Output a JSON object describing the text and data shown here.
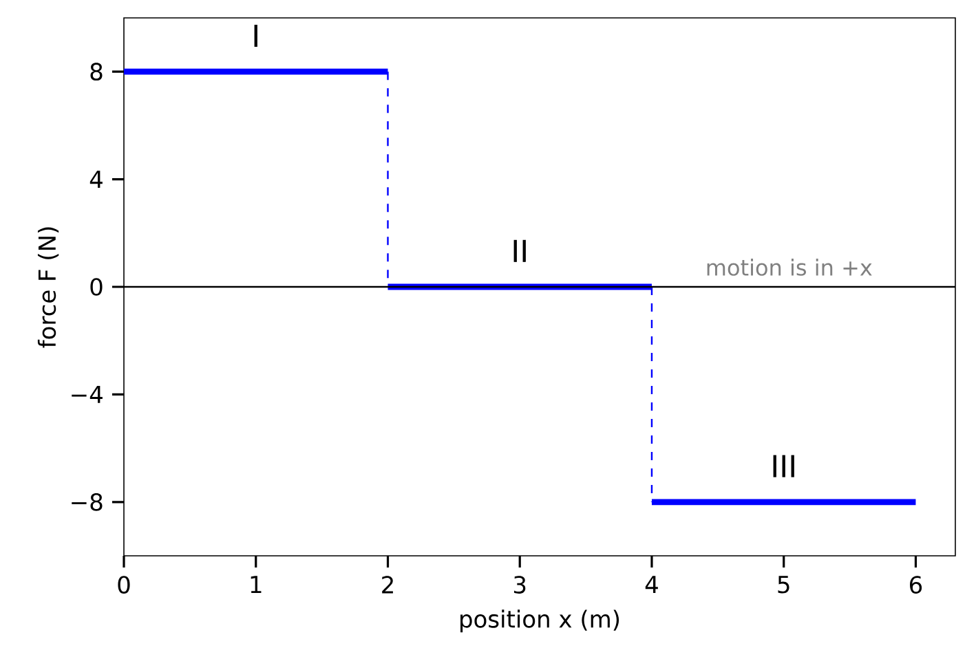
{
  "chart_data": {
    "type": "line",
    "xlabel": "position x (m)",
    "ylabel": "force F (N)",
    "xlim": [
      0,
      6.3
    ],
    "ylim": [
      -10,
      10
    ],
    "xticks": [
      0,
      1,
      2,
      3,
      4,
      5,
      6
    ],
    "yticks": [
      {
        "value": -8,
        "label": "−8"
      },
      {
        "value": -4,
        "label": "−4"
      },
      0,
      4,
      8
    ],
    "marker": "none",
    "series": [
      {
        "color": "#0000ff",
        "x": [
          0,
          2
        ],
        "values": [
          8,
          8
        ],
        "line_style": "solid"
      },
      {
        "color": "#0000ff",
        "x": [
          2,
          4
        ],
        "values": [
          0,
          0
        ],
        "line_style": "solid"
      },
      {
        "color": "#0000ff",
        "x": [
          4,
          6
        ],
        "values": [
          -8,
          -8
        ],
        "line_style": "solid"
      },
      {
        "color": "#0000ff",
        "x": [
          2,
          2
        ],
        "values": [
          8,
          0
        ],
        "line_style": "dashed"
      },
      {
        "color": "#0000ff",
        "x": [
          4,
          4
        ],
        "values": [
          0,
          -8
        ],
        "line_style": "dashed"
      }
    ],
    "ref_lines": [
      {
        "axis": "y",
        "value": 0,
        "color": "#000000"
      }
    ],
    "annotations": [
      "I",
      "II",
      "III",
      "motion is in +x"
    ]
  }
}
